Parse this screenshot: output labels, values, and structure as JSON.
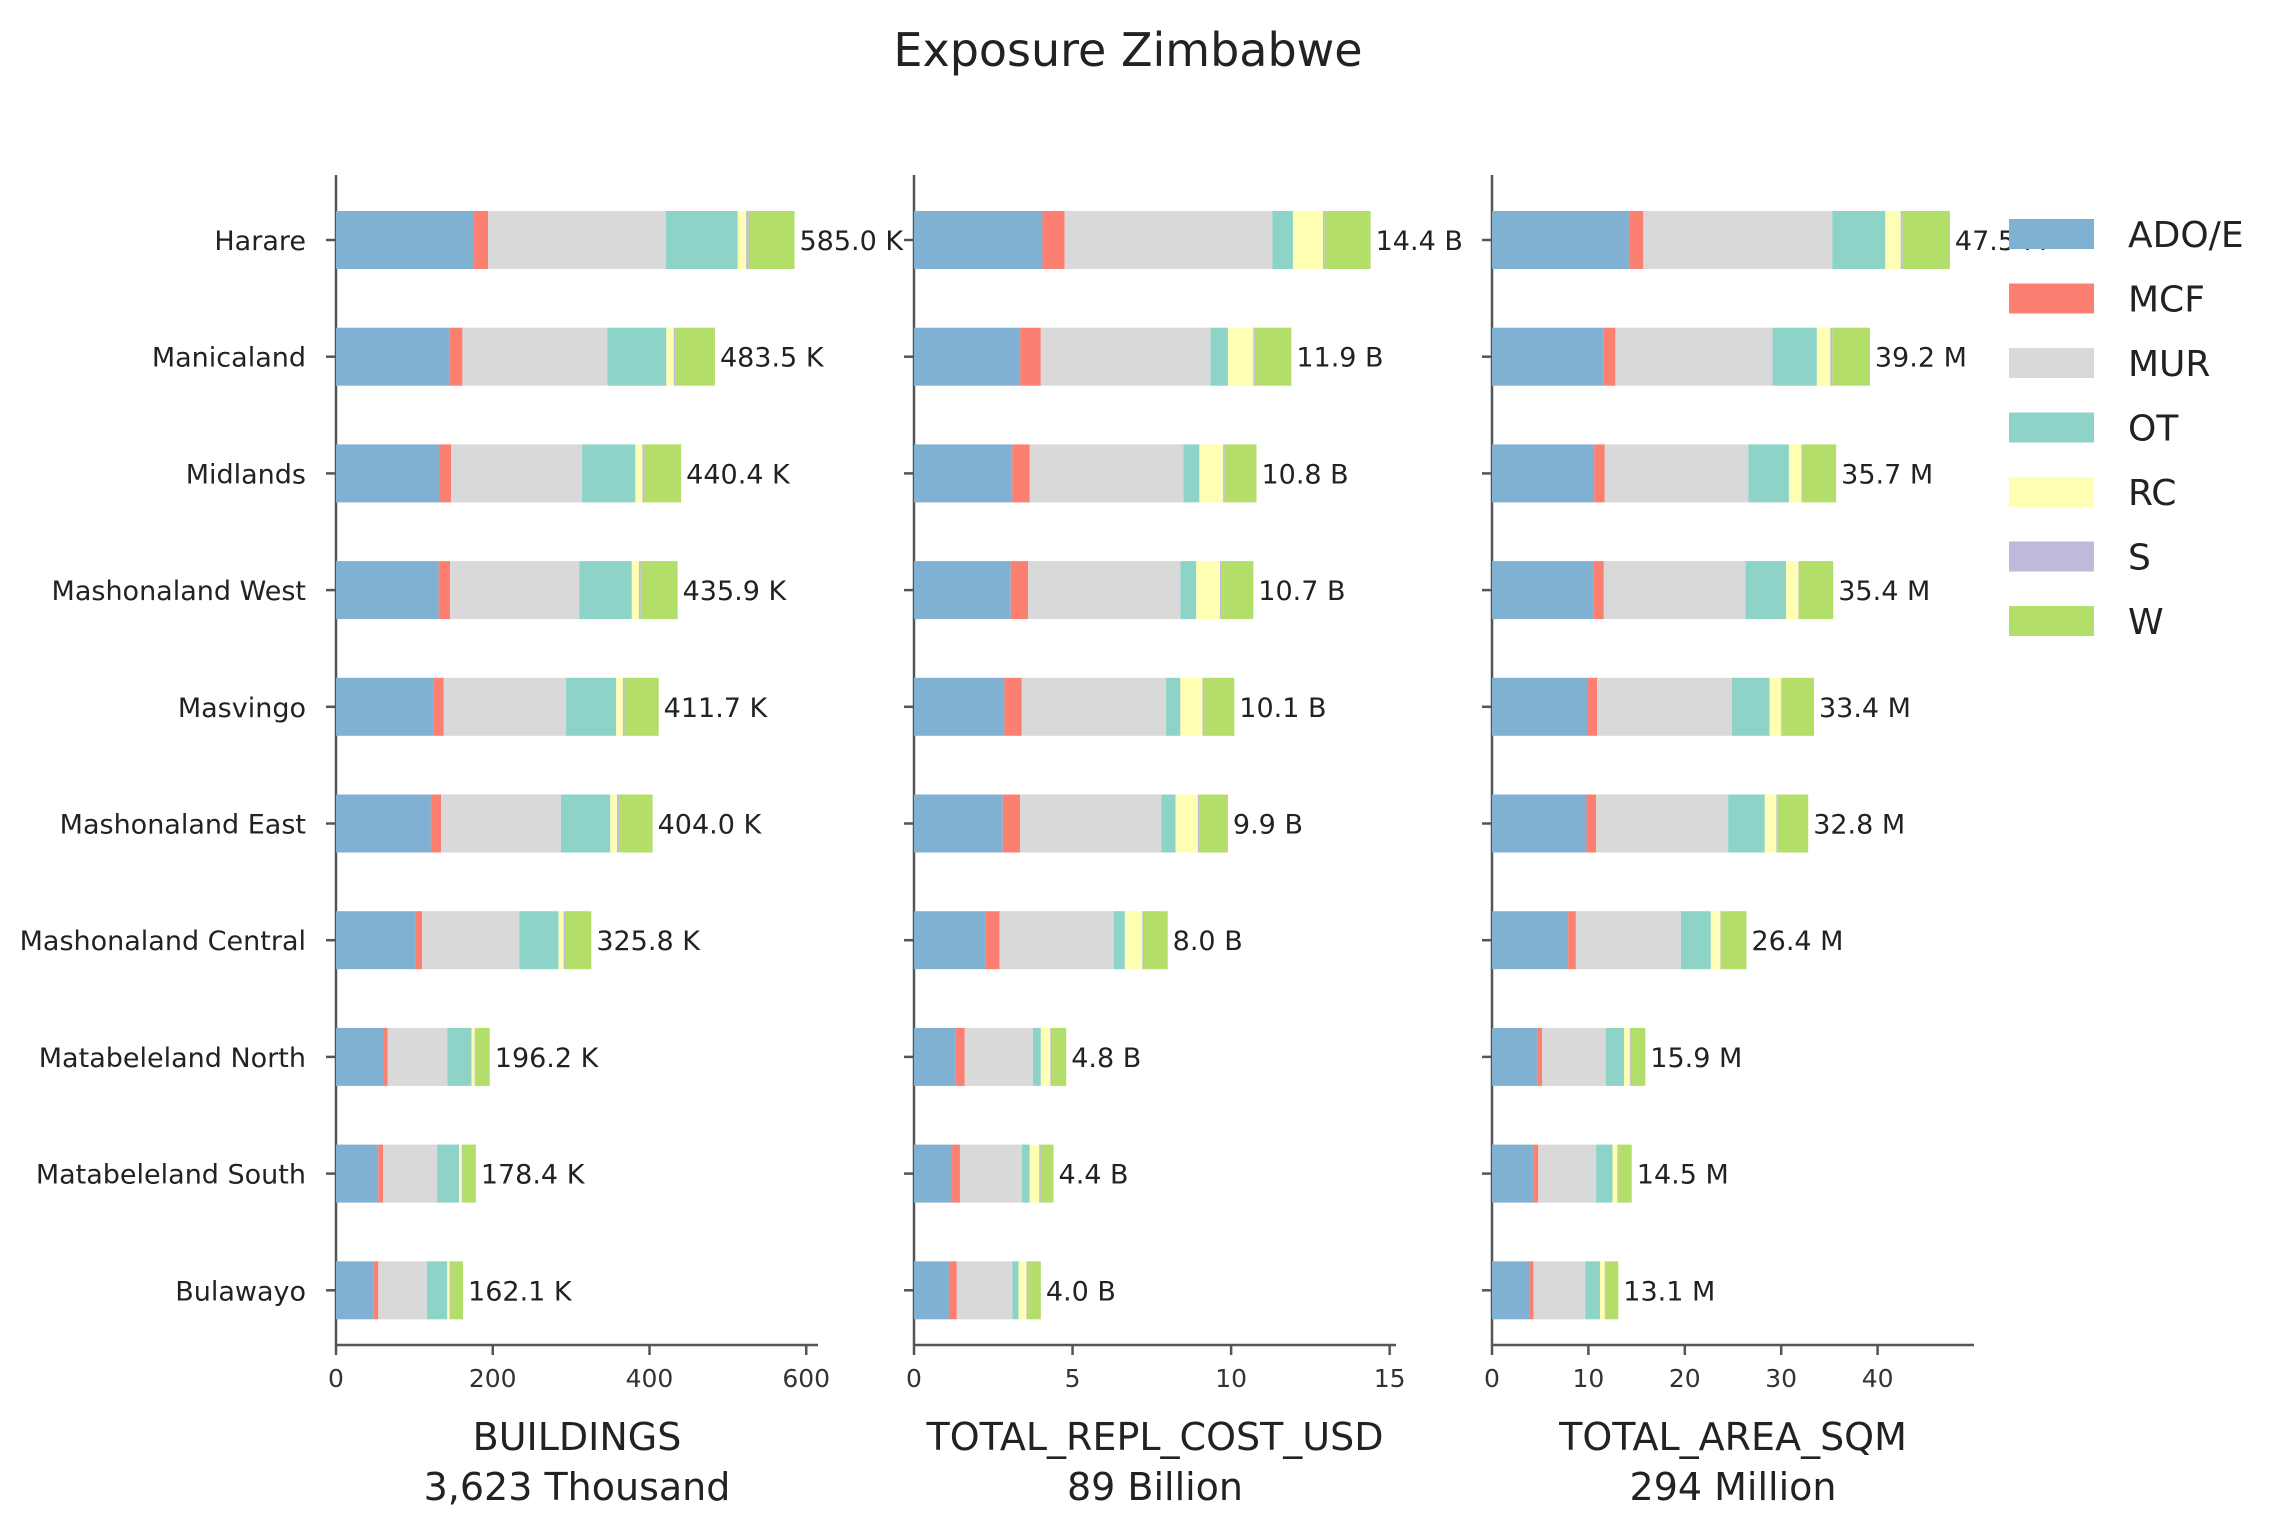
{
  "title": "Exposure Zimbabwe",
  "chart_data": {
    "type": "bar",
    "orientation": "horizontal",
    "stacked": true,
    "categories": [
      "Harare",
      "Manicaland",
      "Midlands",
      "Mashonaland West",
      "Masvingo",
      "Mashonaland East",
      "Mashonaland Central",
      "Matabeleland North",
      "Matabeleland South",
      "Bulawayo"
    ],
    "series_names": [
      "ADO/E",
      "MCF",
      "MUR",
      "OT",
      "RC",
      "S",
      "W"
    ],
    "series_colors": [
      "#80b1d3",
      "#fb8072",
      "#d9d9d9",
      "#8dd3c7",
      "#ffffb3",
      "#bebada",
      "#b3de69"
    ],
    "legend_position": "right",
    "grid": false,
    "panels": [
      {
        "id": "buildings",
        "xlabel": "BUILDINGS",
        "sublabel": "3,623 Thousand",
        "xlim": [
          0,
          615
        ],
        "xticks": [
          0,
          200,
          400,
          600
        ],
        "totals": [
          "585.0 K",
          "483.5 K",
          "440.4 K",
          "435.9 K",
          "411.7 K",
          "404.0 K",
          "325.8 K",
          "196.2 K",
          "178.4 K",
          "162.1 K"
        ],
        "segments": [
          [
            176.2,
            17.9,
            226.8,
            91.7,
            10.8,
            3.1,
            58.5
          ],
          [
            145.3,
            16.0,
            185.0,
            75.2,
            9.5,
            2.5,
            50.0
          ],
          [
            132.0,
            15.0,
            167.0,
            68.0,
            9.0,
            2.4,
            47.0
          ],
          [
            131.0,
            14.5,
            165.0,
            67.0,
            9.0,
            2.4,
            47.0
          ],
          [
            124.0,
            13.5,
            156.0,
            64.0,
            8.5,
            2.2,
            43.5
          ],
          [
            121.0,
            13.0,
            153.0,
            63.0,
            8.5,
            2.5,
            43.0
          ],
          [
            102.0,
            8.0,
            124.0,
            50.0,
            6.5,
            2.3,
            33.0
          ],
          [
            60.0,
            6.0,
            76.0,
            31.0,
            4.0,
            1.2,
            18.0
          ],
          [
            54.0,
            6.0,
            69.0,
            28.0,
            3.5,
            0.9,
            17.0
          ],
          [
            48.0,
            6.0,
            62.0,
            26.0,
            3.0,
            1.1,
            16.0
          ]
        ]
      },
      {
        "id": "cost",
        "xlabel": "TOTAL_REPL_COST_USD",
        "sublabel": "89 Billion",
        "xlim": [
          0,
          15.2
        ],
        "xticks": [
          0,
          5,
          10,
          15
        ],
        "totals": [
          "14.4 B",
          "11.9 B",
          "10.8 B",
          "10.7 B",
          "10.1 B",
          "9.9 B",
          "8.0 B",
          "4.8 B",
          "4.4 B",
          "4.0 B"
        ],
        "segments": [
          [
            4.05,
            0.7,
            6.55,
            0.65,
            0.95,
            0.05,
            1.45
          ],
          [
            3.35,
            0.65,
            5.35,
            0.55,
            0.8,
            0.05,
            1.15
          ],
          [
            3.1,
            0.55,
            4.85,
            0.5,
            0.75,
            0.05,
            1.0
          ],
          [
            3.05,
            0.55,
            4.8,
            0.5,
            0.75,
            0.05,
            1.0
          ],
          [
            2.85,
            0.55,
            4.55,
            0.45,
            0.7,
            0.05,
            0.95
          ],
          [
            2.8,
            0.55,
            4.45,
            0.45,
            0.7,
            0.05,
            0.9
          ],
          [
            2.25,
            0.45,
            3.6,
            0.35,
            0.55,
            0.05,
            0.75
          ],
          [
            1.3,
            0.3,
            2.15,
            0.25,
            0.3,
            0.05,
            0.45
          ],
          [
            1.2,
            0.25,
            1.95,
            0.25,
            0.3,
            0.05,
            0.4
          ],
          [
            1.1,
            0.25,
            1.75,
            0.2,
            0.25,
            0.05,
            0.4
          ]
        ]
      },
      {
        "id": "area",
        "xlabel": "TOTAL_AREA_SQM",
        "sublabel": "294 Million",
        "xlim": [
          0,
          50
        ],
        "xticks": [
          0,
          10,
          20,
          30,
          40
        ],
        "totals": [
          "47.5 M",
          "39.2 M",
          "35.7 M",
          "35.4 M",
          "33.4 M",
          "32.8 M",
          "26.4 M",
          "15.9 M",
          "14.5 M",
          "13.1 M"
        ],
        "segments": [
          [
            14.2,
            1.5,
            19.6,
            5.5,
            1.6,
            0.2,
            4.9
          ],
          [
            11.6,
            1.2,
            16.3,
            4.6,
            1.4,
            0.2,
            3.9
          ],
          [
            10.6,
            1.1,
            14.9,
            4.2,
            1.3,
            0.1,
            3.5
          ],
          [
            10.5,
            1.1,
            14.7,
            4.2,
            1.3,
            0.1,
            3.5
          ],
          [
            9.9,
            1.0,
            14.0,
            3.9,
            1.2,
            0.1,
            3.3
          ],
          [
            9.8,
            1.0,
            13.7,
            3.8,
            1.2,
            0.1,
            3.2
          ],
          [
            7.9,
            0.8,
            10.9,
            3.1,
            1.0,
            0.1,
            2.6
          ],
          [
            4.7,
            0.5,
            6.6,
            1.9,
            0.6,
            0.1,
            1.5
          ],
          [
            4.3,
            0.5,
            6.0,
            1.7,
            0.5,
            0.1,
            1.4
          ],
          [
            3.9,
            0.4,
            5.4,
            1.5,
            0.5,
            0.1,
            1.3
          ]
        ]
      }
    ]
  }
}
